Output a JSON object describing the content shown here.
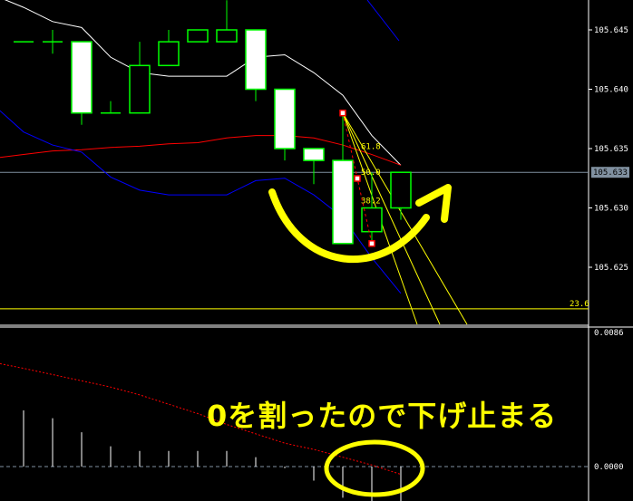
{
  "chart_data": {
    "type": "candlestick",
    "symbol_price_axis": {
      "ticks": [
        "105.645",
        "105.640",
        "105.635",
        "105.630",
        "105.625"
      ],
      "tick_values": [
        105.645,
        105.64,
        105.635,
        105.63,
        105.625
      ],
      "ylim": [
        105.6205,
        105.6475
      ]
    },
    "current_price": {
      "label": "105.633",
      "value": 105.633,
      "color": "#8090a0"
    },
    "candles": [
      {
        "o": 105.644,
        "h": 105.644,
        "l": 105.644,
        "c": 105.644
      },
      {
        "o": 105.644,
        "h": 105.645,
        "l": 105.643,
        "c": 105.644
      },
      {
        "o": 105.644,
        "h": 105.644,
        "l": 105.637,
        "c": 105.638
      },
      {
        "o": 105.638,
        "h": 105.639,
        "l": 105.638,
        "c": 105.638
      },
      {
        "o": 105.638,
        "h": 105.644,
        "l": 105.638,
        "c": 105.642
      },
      {
        "o": 105.642,
        "h": 105.645,
        "l": 105.642,
        "c": 105.644
      },
      {
        "o": 105.644,
        "h": 105.645,
        "l": 105.644,
        "c": 105.645
      },
      {
        "o": 105.644,
        "h": 105.6475,
        "l": 105.644,
        "c": 105.645
      },
      {
        "o": 105.645,
        "h": 105.645,
        "l": 105.639,
        "c": 105.64
      },
      {
        "o": 105.64,
        "h": 105.64,
        "l": 105.634,
        "c": 105.635
      },
      {
        "o": 105.635,
        "h": 105.635,
        "l": 105.632,
        "c": 105.634
      },
      {
        "o": 105.634,
        "h": 105.638,
        "l": 105.627,
        "c": 105.627
      },
      {
        "o": 105.628,
        "h": 105.633,
        "l": 105.627,
        "c": 105.63
      },
      {
        "o": 105.63,
        "h": 105.633,
        "l": 105.629,
        "c": 105.633
      }
    ],
    "bollinger": {
      "upper": [
        105.6469,
        105.6457,
        105.6452,
        105.6427,
        105.6414,
        105.6411,
        105.6411,
        105.6411,
        105.6427,
        105.6429,
        105.6414,
        105.6395,
        105.6361,
        105.6336
      ],
      "middle": [
        105.6345,
        105.6348,
        105.6349,
        105.6351,
        105.6352,
        105.6354,
        105.6355,
        105.6359,
        105.6361,
        105.6361,
        105.6359,
        105.6353,
        105.6345,
        105.6336
      ],
      "lower": [
        105.6364,
        105.6353,
        105.6347,
        105.6326,
        105.6315,
        105.6311,
        105.6311,
        105.6311,
        105.6323,
        105.6325,
        105.6311,
        105.6292,
        105.6258,
        105.6228
      ],
      "colors": {
        "upper": "#ffffff",
        "middle": "#ff0000",
        "lower": "#0000ff"
      }
    },
    "fibonacci": {
      "levels": [
        {
          "label": "61.8",
          "value": 105.6352
        },
        {
          "label": "50.0",
          "value": 105.633
        },
        {
          "label": "38.2",
          "value": 105.6306
        },
        {
          "label": "23.6",
          "value": 105.6215
        }
      ],
      "from_price": 105.638,
      "to_price": 105.627,
      "color": "#ffff00"
    },
    "oscillator": {
      "ticks": [
        "0.0086",
        "0.0000"
      ],
      "tick_values": [
        0.0086,
        0.0
      ],
      "ylim": [
        -0.0026,
        0.0099
      ],
      "histogram": [
        0.0036,
        0.0031,
        0.0022,
        0.0013,
        0.001,
        0.001,
        0.001,
        0.001,
        0.0006,
        -0.0001,
        -0.0009,
        -0.002,
        -0.0023,
        -0.0023
      ],
      "signal": [
        0.0063,
        0.0059,
        0.0055,
        0.0051,
        0.0046,
        0.004,
        0.0034,
        0.0027,
        0.0021,
        0.0015,
        0.0011,
        0.0006,
        0.0001,
        -0.0005
      ],
      "colors": {
        "histogram": "#ffffff",
        "signal": "#ff0000",
        "zero": "#8090a0"
      }
    },
    "colors": {
      "bull": "#00ff00",
      "bear_fill": "#ffffff",
      "grid_axis": "#ffffff",
      "annotation": "#ffff00"
    }
  },
  "annotation": {
    "text": "0を割ったので下げ止まる"
  }
}
